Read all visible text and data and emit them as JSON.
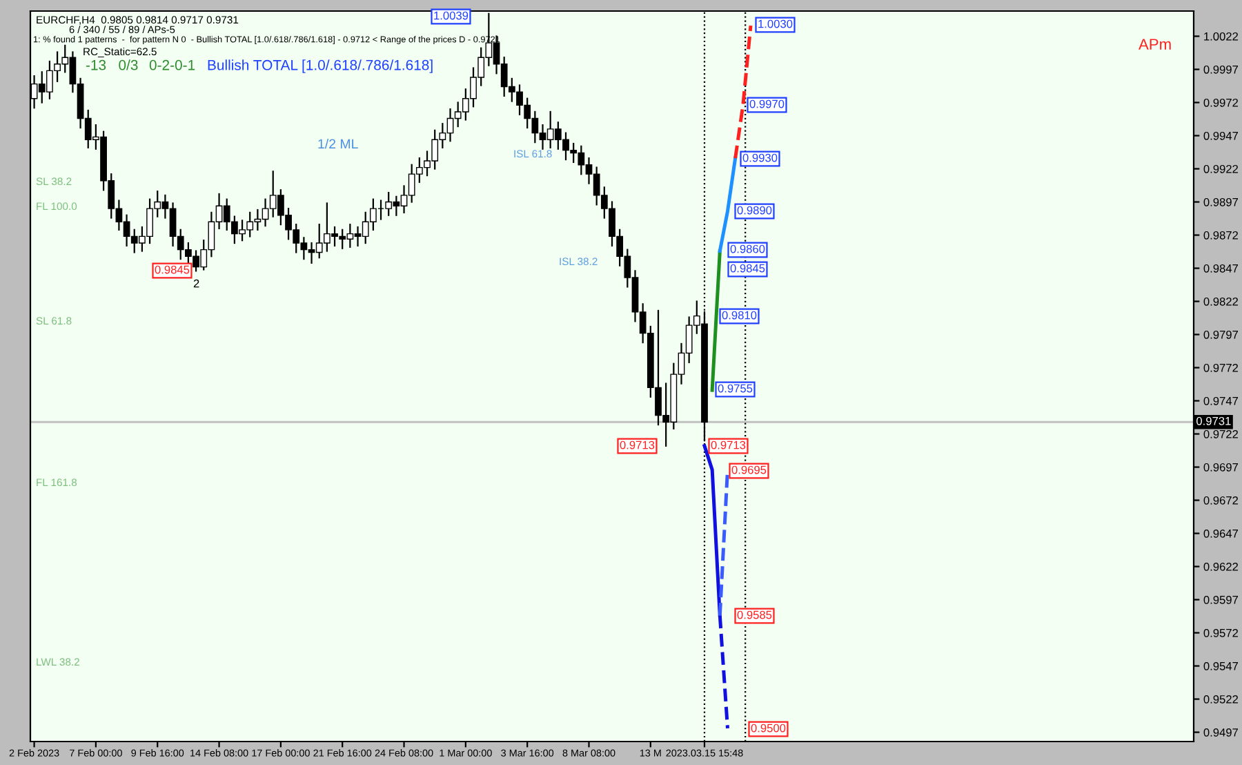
{
  "chart_data": {
    "type": "candlestick",
    "categories": [
      "2 Feb 2023",
      null,
      null,
      null,
      null,
      null,
      null,
      null,
      "7 Feb 00:00",
      null,
      null,
      null,
      null,
      null,
      null,
      null,
      "9 Feb 16:00",
      null,
      null,
      null,
      null,
      null,
      null,
      null,
      "14 Feb 08:00",
      null,
      null,
      null,
      null,
      null,
      null,
      null,
      "17 Feb 00:00",
      null,
      null,
      null,
      null,
      null,
      null,
      null,
      "21 Feb 16:00",
      null,
      null,
      null,
      null,
      null,
      null,
      null,
      "24 Feb 08:00",
      null,
      null,
      null,
      null,
      null,
      null,
      null,
      "1 Mar 00:00",
      null,
      null,
      null,
      null,
      null,
      null,
      null,
      "3 Mar 16:00",
      null,
      null,
      null,
      null,
      null,
      null,
      null,
      "8 Mar 08:00",
      null,
      null,
      null,
      null,
      null,
      null,
      null,
      "13 M",
      null,
      null,
      null,
      null,
      null,
      null,
      "2023.03.15 15:48",
      null,
      null,
      null,
      null,
      null,
      null,
      null,
      null,
      null,
      null,
      null,
      null,
      null,
      null,
      null,
      null,
      null,
      null,
      null,
      null,
      null,
      null,
      null,
      null,
      null,
      null,
      null,
      null,
      null,
      null,
      null,
      null,
      null,
      null,
      null,
      null,
      null,
      null,
      null,
      null,
      null,
      null,
      null,
      null,
      null,
      null,
      null,
      null,
      null,
      null,
      null,
      null,
      null,
      null,
      null,
      null,
      null,
      null,
      null,
      null,
      null,
      null,
      null
    ],
    "ohlc": [
      [
        0.9975,
        0.9992,
        0.9968,
        0.9986
      ],
      [
        0.9986,
        0.9995,
        0.9972,
        0.998
      ],
      [
        0.998,
        1.0003,
        0.9975,
        0.9996
      ],
      [
        0.9996,
        1.001,
        0.9988,
        1.0001
      ],
      [
        1.0001,
        1.0015,
        0.9995,
        1.0006
      ],
      [
        1.0006,
        1.001,
        0.998,
        0.9986
      ],
      [
        0.9986,
        0.999,
        0.9953,
        0.996
      ],
      [
        0.996,
        0.9966,
        0.9938,
        0.9944
      ],
      [
        0.9944,
        0.9955,
        0.9937,
        0.9946
      ],
      [
        0.9946,
        0.995,
        0.9906,
        0.9913
      ],
      [
        0.9913,
        0.9918,
        0.9885,
        0.9892
      ],
      [
        0.9892,
        0.9898,
        0.9876,
        0.9882
      ],
      [
        0.9882,
        0.9887,
        0.9864,
        0.9871
      ],
      [
        0.9871,
        0.9876,
        0.9859,
        0.9866
      ],
      [
        0.9866,
        0.9878,
        0.986,
        0.9871
      ],
      [
        0.9871,
        0.9899,
        0.9866,
        0.9892
      ],
      [
        0.9892,
        0.9905,
        0.9886,
        0.9897
      ],
      [
        0.9897,
        0.9902,
        0.9885,
        0.9892
      ],
      [
        0.9892,
        0.9896,
        0.9864,
        0.9871
      ],
      [
        0.9871,
        0.9876,
        0.9854,
        0.9861
      ],
      [
        0.9861,
        0.9866,
        0.9849,
        0.9856
      ],
      [
        0.9856,
        0.986,
        0.9845,
        0.9848
      ],
      [
        0.9848,
        0.9868,
        0.9846,
        0.9861
      ],
      [
        0.9861,
        0.9889,
        0.9856,
        0.9882
      ],
      [
        0.9882,
        0.9903,
        0.9877,
        0.9894
      ],
      [
        0.9894,
        0.9899,
        0.9876,
        0.9882
      ],
      [
        0.9882,
        0.9886,
        0.9866,
        0.9873
      ],
      [
        0.9873,
        0.9883,
        0.9868,
        0.9876
      ],
      [
        0.9876,
        0.9889,
        0.9871,
        0.9882
      ],
      [
        0.9882,
        0.9891,
        0.9876,
        0.9884
      ],
      [
        0.9884,
        0.9899,
        0.9879,
        0.9892
      ],
      [
        0.9892,
        0.992,
        0.9886,
        0.9902
      ],
      [
        0.9902,
        0.9906,
        0.988,
        0.9887
      ],
      [
        0.9887,
        0.9892,
        0.9869,
        0.9876
      ],
      [
        0.9876,
        0.988,
        0.9859,
        0.9866
      ],
      [
        0.9866,
        0.987,
        0.9854,
        0.9861
      ],
      [
        0.9861,
        0.9866,
        0.9851,
        0.9859
      ],
      [
        0.9859,
        0.988,
        0.9855,
        0.9866
      ],
      [
        0.9866,
        0.9896,
        0.986,
        0.9873
      ],
      [
        0.9873,
        0.9878,
        0.9864,
        0.9871
      ],
      [
        0.9871,
        0.9876,
        0.9862,
        0.9869
      ],
      [
        0.9869,
        0.988,
        0.9863,
        0.9873
      ],
      [
        0.9873,
        0.9878,
        0.9864,
        0.9871
      ],
      [
        0.9871,
        0.9889,
        0.9866,
        0.9882
      ],
      [
        0.9882,
        0.9899,
        0.9876,
        0.9892
      ],
      [
        0.9892,
        0.9898,
        0.9884,
        0.9892
      ],
      [
        0.9892,
        0.9904,
        0.9887,
        0.9897
      ],
      [
        0.9897,
        0.9901,
        0.9887,
        0.9894
      ],
      [
        0.9894,
        0.9909,
        0.9889,
        0.9902
      ],
      [
        0.9902,
        0.9925,
        0.9897,
        0.9918
      ],
      [
        0.9918,
        0.993,
        0.9912,
        0.9923
      ],
      [
        0.9923,
        0.9935,
        0.9917,
        0.9928
      ],
      [
        0.9928,
        0.9951,
        0.9922,
        0.9944
      ],
      [
        0.9944,
        0.9956,
        0.9938,
        0.9949
      ],
      [
        0.9949,
        0.9967,
        0.9943,
        0.996
      ],
      [
        0.996,
        0.9972,
        0.9954,
        0.9965
      ],
      [
        0.9965,
        0.9982,
        0.9959,
        0.9975
      ],
      [
        0.9975,
        0.9998,
        0.9969,
        0.9991
      ],
      [
        0.9991,
        1.0013,
        0.9985,
        1.0006
      ],
      [
        1.0006,
        1.0039,
        1.0,
        1.0017
      ],
      [
        1.0017,
        1.0022,
        0.9994,
        1.0001
      ],
      [
        1.0001,
        1.0006,
        0.9977,
        0.9984
      ],
      [
        0.9984,
        0.999,
        0.9973,
        0.998
      ],
      [
        0.998,
        0.9985,
        0.9963,
        0.997
      ],
      [
        0.997,
        0.9975,
        0.9953,
        0.996
      ],
      [
        0.996,
        0.9965,
        0.9942,
        0.9949
      ],
      [
        0.9949,
        0.9955,
        0.9937,
        0.9944
      ],
      [
        0.9944,
        0.9965,
        0.9938,
        0.9952
      ],
      [
        0.9952,
        0.9957,
        0.9937,
        0.9944
      ],
      [
        0.9944,
        0.9949,
        0.9929,
        0.9936
      ],
      [
        0.9936,
        0.9941,
        0.9927,
        0.9934
      ],
      [
        0.9934,
        0.9939,
        0.9918,
        0.9925
      ],
      [
        0.9925,
        0.993,
        0.9911,
        0.9918
      ],
      [
        0.9918,
        0.9923,
        0.9895,
        0.9902
      ],
      [
        0.9902,
        0.9908,
        0.9885,
        0.9892
      ],
      [
        0.9892,
        0.9897,
        0.9864,
        0.9871
      ],
      [
        0.9871,
        0.9876,
        0.9849,
        0.9856
      ],
      [
        0.9856,
        0.9861,
        0.9833,
        0.984
      ],
      [
        0.984,
        0.9845,
        0.9807,
        0.9814
      ],
      [
        0.9814,
        0.982,
        0.9791,
        0.9798
      ],
      [
        0.9798,
        0.9803,
        0.975,
        0.9757
      ],
      [
        0.9757,
        0.9815,
        0.9729,
        0.9736
      ],
      [
        0.9736,
        0.976,
        0.9713,
        0.9731
      ],
      [
        0.9731,
        0.9775,
        0.9726,
        0.9767
      ],
      [
        0.9767,
        0.979,
        0.976,
        0.9783
      ],
      [
        0.9783,
        0.981,
        0.9776,
        0.9804
      ],
      [
        0.9804,
        0.9822,
        0.9798,
        0.9811
      ],
      [
        0.9805,
        0.9814,
        0.9717,
        0.9731
      ],
      null,
      null,
      null,
      null,
      null,
      null,
      null,
      null,
      null,
      null,
      null,
      null,
      null,
      null,
      null,
      null,
      null,
      null,
      null,
      null,
      null,
      null,
      null,
      null,
      null,
      null,
      null,
      null,
      null,
      null,
      null,
      null,
      null,
      null,
      null,
      null,
      null,
      null,
      null,
      null,
      null,
      null,
      null,
      null,
      null,
      null,
      null,
      null,
      null,
      null,
      null,
      null,
      null,
      null,
      null,
      null,
      null,
      null,
      null,
      null,
      null,
      null,
      null
    ],
    "series": [
      {
        "type": "line",
        "color": "#1f8f1f",
        "values": [
          null,
          null,
          null,
          null,
          null,
          null,
          null,
          null,
          null,
          null,
          null,
          null,
          null,
          null,
          null,
          null,
          null,
          null,
          null,
          null,
          null,
          null,
          null,
          null,
          null,
          null,
          null,
          null,
          null,
          null,
          null,
          null,
          null,
          null,
          null,
          null,
          null,
          null,
          null,
          null,
          null,
          null,
          null,
          null,
          null,
          null,
          null,
          null,
          null,
          null,
          null,
          null,
          null,
          null,
          null,
          null,
          null,
          null,
          null,
          null,
          null,
          null,
          null,
          null,
          null,
          null,
          null,
          null,
          null,
          null,
          null,
          null,
          null,
          null,
          null,
          null,
          null,
          null,
          null,
          null,
          null,
          null,
          null,
          null,
          null,
          null,
          null,
          null,
          0.9755,
          0.986,
          null,
          null,
          null,
          null,
          null,
          null,
          null,
          null,
          null,
          null,
          null,
          null,
          null,
          null,
          null,
          null,
          null,
          null,
          null,
          null,
          null,
          null,
          null,
          null,
          null,
          null,
          null,
          null,
          null,
          null,
          null,
          null,
          null,
          null,
          null,
          null,
          null,
          null,
          null,
          null,
          null,
          null,
          null,
          null,
          null,
          null,
          null,
          null,
          null,
          null,
          null,
          null,
          null,
          null,
          null,
          null,
          null,
          null,
          null,
          null,
          null
        ]
      },
      {
        "type": "line",
        "color": "#1e90ff",
        "values": [
          null,
          null,
          null,
          null,
          null,
          null,
          null,
          null,
          null,
          null,
          null,
          null,
          null,
          null,
          null,
          null,
          null,
          null,
          null,
          null,
          null,
          null,
          null,
          null,
          null,
          null,
          null,
          null,
          null,
          null,
          null,
          null,
          null,
          null,
          null,
          null,
          null,
          null,
          null,
          null,
          null,
          null,
          null,
          null,
          null,
          null,
          null,
          null,
          null,
          null,
          null,
          null,
          null,
          null,
          null,
          null,
          null,
          null,
          null,
          null,
          null,
          null,
          null,
          null,
          null,
          null,
          null,
          null,
          null,
          null,
          null,
          null,
          null,
          null,
          null,
          null,
          null,
          null,
          null,
          null,
          null,
          null,
          null,
          null,
          null,
          null,
          null,
          null,
          null,
          0.986,
          0.989,
          0.993,
          null,
          null,
          null,
          null,
          null,
          null,
          null,
          null,
          null,
          null,
          null,
          null,
          null,
          null,
          null,
          null,
          null,
          null,
          null,
          null,
          null,
          null,
          null,
          null,
          null,
          null,
          null,
          null,
          null,
          null,
          null,
          null,
          null,
          null,
          null,
          null,
          null,
          null,
          null,
          null,
          null,
          null,
          null,
          null,
          null,
          null,
          null,
          null,
          null,
          null,
          null,
          null,
          null,
          null,
          null,
          null,
          null,
          null,
          null
        ]
      },
      {
        "type": "line",
        "color": "#ff2020",
        "line_style": "dashed",
        "values": [
          null,
          null,
          null,
          null,
          null,
          null,
          null,
          null,
          null,
          null,
          null,
          null,
          null,
          null,
          null,
          null,
          null,
          null,
          null,
          null,
          null,
          null,
          null,
          null,
          null,
          null,
          null,
          null,
          null,
          null,
          null,
          null,
          null,
          null,
          null,
          null,
          null,
          null,
          null,
          null,
          null,
          null,
          null,
          null,
          null,
          null,
          null,
          null,
          null,
          null,
          null,
          null,
          null,
          null,
          null,
          null,
          null,
          null,
          null,
          null,
          null,
          null,
          null,
          null,
          null,
          null,
          null,
          null,
          null,
          null,
          null,
          null,
          null,
          null,
          null,
          null,
          null,
          null,
          null,
          null,
          null,
          null,
          null,
          null,
          null,
          null,
          null,
          null,
          null,
          null,
          null,
          0.993,
          0.997,
          1.003,
          null,
          null,
          null,
          null,
          null,
          null,
          null,
          null,
          null,
          null,
          null,
          null,
          null,
          null,
          null,
          null,
          null,
          null,
          null,
          null,
          null,
          null,
          null,
          null,
          null,
          null,
          null,
          null,
          null,
          null,
          null,
          null,
          null,
          null,
          null,
          null,
          null,
          null,
          null,
          null,
          null,
          null,
          null,
          null,
          null,
          null,
          null,
          null,
          null,
          null,
          null,
          null,
          null,
          null,
          null,
          null,
          null
        ]
      },
      {
        "type": "line",
        "color": "#1010e0",
        "values": [
          null,
          null,
          null,
          null,
          null,
          null,
          null,
          null,
          null,
          null,
          null,
          null,
          null,
          null,
          null,
          null,
          null,
          null,
          null,
          null,
          null,
          null,
          null,
          null,
          null,
          null,
          null,
          null,
          null,
          null,
          null,
          null,
          null,
          null,
          null,
          null,
          null,
          null,
          null,
          null,
          null,
          null,
          null,
          null,
          null,
          null,
          null,
          null,
          null,
          null,
          null,
          null,
          null,
          null,
          null,
          null,
          null,
          null,
          null,
          null,
          null,
          null,
          null,
          null,
          null,
          null,
          null,
          null,
          null,
          null,
          null,
          null,
          null,
          null,
          null,
          null,
          null,
          null,
          null,
          null,
          null,
          null,
          null,
          null,
          null,
          null,
          null,
          0.9713,
          0.9695,
          0.9585,
          null,
          null,
          null,
          null,
          null,
          null,
          null,
          null,
          null,
          null,
          null,
          null,
          null,
          null,
          null,
          null,
          null,
          null,
          null,
          null,
          null,
          null,
          null,
          null,
          null,
          null,
          null,
          null,
          null,
          null,
          null,
          null,
          null,
          null,
          null,
          null,
          null,
          null,
          null,
          null,
          null,
          null,
          null,
          null,
          null,
          null,
          null,
          null,
          null,
          null,
          null,
          null,
          null,
          null,
          null,
          null,
          null,
          null,
          null,
          null,
          null
        ]
      },
      {
        "type": "line",
        "color": "#1010e0",
        "line_style": "dashed",
        "values": [
          null,
          null,
          null,
          null,
          null,
          null,
          null,
          null,
          null,
          null,
          null,
          null,
          null,
          null,
          null,
          null,
          null,
          null,
          null,
          null,
          null,
          null,
          null,
          null,
          null,
          null,
          null,
          null,
          null,
          null,
          null,
          null,
          null,
          null,
          null,
          null,
          null,
          null,
          null,
          null,
          null,
          null,
          null,
          null,
          null,
          null,
          null,
          null,
          null,
          null,
          null,
          null,
          null,
          null,
          null,
          null,
          null,
          null,
          null,
          null,
          null,
          null,
          null,
          null,
          null,
          null,
          null,
          null,
          null,
          null,
          null,
          null,
          null,
          null,
          null,
          null,
          null,
          null,
          null,
          null,
          null,
          null,
          null,
          null,
          null,
          null,
          null,
          null,
          null,
          0.9585,
          0.95,
          null,
          null,
          null,
          null,
          null,
          null,
          null,
          null,
          null,
          null,
          null,
          null,
          null,
          null,
          null,
          null,
          null,
          null,
          null,
          null,
          null,
          null,
          null,
          null,
          null,
          null,
          null,
          null,
          null,
          null,
          null,
          null,
          null,
          null,
          null,
          null,
          null,
          null,
          null,
          null,
          null,
          null,
          null,
          null,
          null,
          null,
          null,
          null,
          null,
          null,
          null,
          null,
          null,
          null,
          null,
          null,
          null,
          null,
          null,
          null
        ]
      },
      {
        "type": "line",
        "color": "#3a5cff",
        "line_style": "dashed",
        "values": [
          null,
          null,
          null,
          null,
          null,
          null,
          null,
          null,
          null,
          null,
          null,
          null,
          null,
          null,
          null,
          null,
          null,
          null,
          null,
          null,
          null,
          null,
          null,
          null,
          null,
          null,
          null,
          null,
          null,
          null,
          null,
          null,
          null,
          null,
          null,
          null,
          null,
          null,
          null,
          null,
          null,
          null,
          null,
          null,
          null,
          null,
          null,
          null,
          null,
          null,
          null,
          null,
          null,
          null,
          null,
          null,
          null,
          null,
          null,
          null,
          null,
          null,
          null,
          null,
          null,
          null,
          null,
          null,
          null,
          null,
          null,
          null,
          null,
          null,
          null,
          null,
          null,
          null,
          null,
          null,
          null,
          null,
          null,
          null,
          null,
          null,
          null,
          null,
          null,
          0.9585,
          0.9695,
          null,
          null,
          null,
          null,
          null,
          null,
          null,
          null,
          null,
          null,
          null,
          null,
          null,
          null,
          null,
          null,
          null,
          null,
          null,
          null,
          null,
          null,
          null,
          null,
          null,
          null,
          null,
          null,
          null,
          null,
          null,
          null,
          null,
          null,
          null,
          null,
          null,
          null,
          null,
          null,
          null,
          null,
          null,
          null,
          null,
          null,
          null,
          null,
          null,
          null,
          null,
          null,
          null,
          null,
          null,
          null,
          null,
          null,
          null,
          null
        ]
      }
    ],
    "ylim": [
      0.949,
      1.0041
    ],
    "yticks": [
      1.0022,
      0.9997,
      0.9972,
      0.9947,
      0.9922,
      0.9897,
      0.9872,
      0.9847,
      0.9822,
      0.9797,
      0.9772,
      0.9747,
      0.9722,
      0.9697,
      0.9672,
      0.9647,
      0.9622,
      0.9597,
      0.9572,
      0.9547,
      0.9522,
      0.9497
    ],
    "ref_lines": [
      {
        "axis": "y",
        "value": 0.9731,
        "label": "0.9731",
        "color": "#c0c0c0"
      }
    ],
    "annotations": [
      "EURCHF,H4  0.9805 0.9814 0.9717 0.9731",
      "6 / 340 / 55 / 89 / APs-5",
      "1: % found 1 patterns  -  for pattern N 0  - Bullish TOTAL [1.0/.618/.786/1.618] - 0.9712 < Range of the prices D - 0.9721",
      "RC_Static=62.5",
      "-13   0/3",
      "0-2-0-1",
      "Bullish TOTAL [1.0/.618/.786/1.618]",
      "1/2 ML",
      "APm",
      "SL 38.2",
      "FL 100.0",
      "SL 61.8",
      "FL 161.8",
      "LWL 38.2",
      "2",
      "ISL 61.8",
      "ISL 38.2",
      "1.0039",
      "0.9845",
      "0.9713",
      "1.0030",
      "0.9970",
      "0.9930",
      "0.9890",
      "0.9860",
      "0.9845",
      "0.9810",
      "0.9755",
      "0.9713",
      "0.9695",
      "0.9585",
      "0.9500"
    ],
    "grid": false,
    "legend": false
  }
}
